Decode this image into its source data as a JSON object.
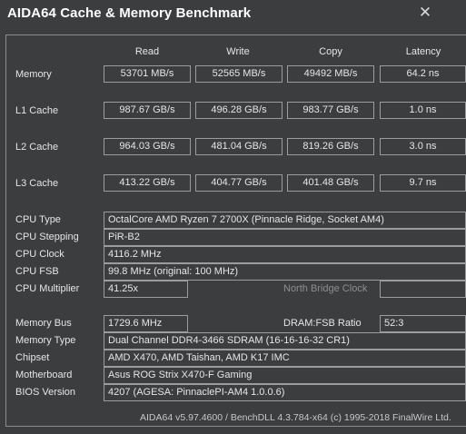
{
  "window": {
    "title": "AIDA64 Cache & Memory Benchmark",
    "close_glyph": "✕"
  },
  "columns": {
    "read": "Read",
    "write": "Write",
    "copy": "Copy",
    "latency": "Latency"
  },
  "rows": {
    "memory": {
      "label": "Memory",
      "read": "53701 MB/s",
      "write": "52565 MB/s",
      "copy": "49492 MB/s",
      "latency": "64.2 ns"
    },
    "l1": {
      "label": "L1 Cache",
      "read": "987.67 GB/s",
      "write": "496.28 GB/s",
      "copy": "983.77 GB/s",
      "latency": "1.0 ns"
    },
    "l2": {
      "label": "L2 Cache",
      "read": "964.03 GB/s",
      "write": "481.04 GB/s",
      "copy": "819.26 GB/s",
      "latency": "3.0 ns"
    },
    "l3": {
      "label": "L3 Cache",
      "read": "413.22 GB/s",
      "write": "404.77 GB/s",
      "copy": "401.48 GB/s",
      "latency": "9.7 ns"
    }
  },
  "cpu": {
    "type": {
      "label": "CPU Type",
      "value": "OctalCore AMD Ryzen 7 2700X  (Pinnacle Ridge, Socket AM4)"
    },
    "stepping": {
      "label": "CPU Stepping",
      "value": "PiR-B2"
    },
    "clock": {
      "label": "CPU Clock",
      "value": "4116.2 MHz"
    },
    "fsb": {
      "label": "CPU FSB",
      "value": "99.8 MHz  (original: 100 MHz)"
    },
    "multiplier": {
      "label": "CPU Multiplier",
      "value": "41.25x"
    },
    "north_bridge_label": "North Bridge Clock"
  },
  "system": {
    "memory_bus": {
      "label": "Memory Bus",
      "value": "1729.6 MHz"
    },
    "dram_ratio": {
      "label": "DRAM:FSB Ratio",
      "value": "52:3"
    },
    "memory_type": {
      "label": "Memory Type",
      "value": "Dual Channel DDR4-3466 SDRAM  (16-16-16-32 CR1)"
    },
    "chipset": {
      "label": "Chipset",
      "value": "AMD X470, AMD Taishan, AMD K17 IMC"
    },
    "motherboard": {
      "label": "Motherboard",
      "value": "Asus ROG Strix X470-F Gaming"
    },
    "bios": {
      "label": "BIOS Version",
      "value": "4207  (AGESA: PinnaclePI-AM4 1.0.0.6)"
    }
  },
  "footer": "AIDA64 v5.97.4600 / BenchDLL 4.3.784-x64  (c) 1995-2018 FinalWire Ltd."
}
